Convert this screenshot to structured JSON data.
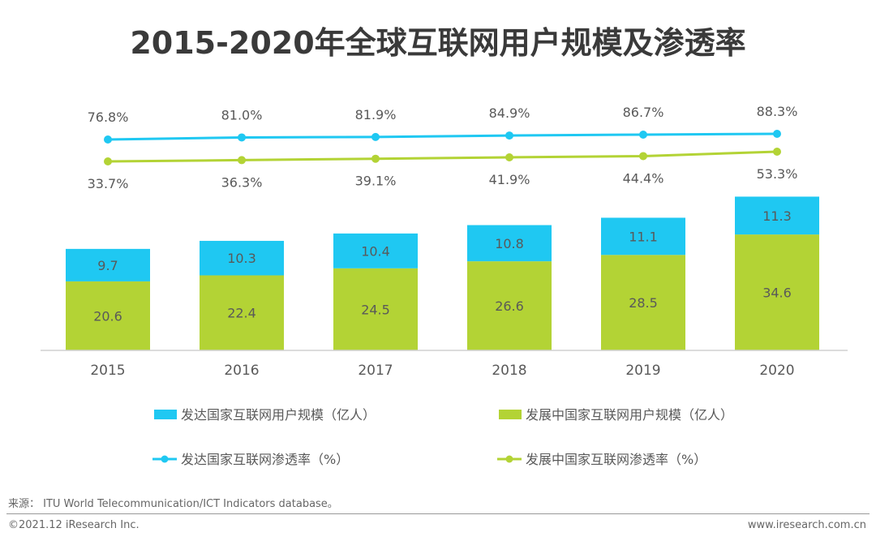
{
  "title": "2015-2020年全球互联网用户规模及渗透率",
  "chart_data": {
    "type": "bar",
    "subtype": "stacked bar with line overlay",
    "title": "2015-2020年全球互联网用户规模及渗透率",
    "categories": [
      "2015",
      "2016",
      "2017",
      "2018",
      "2019",
      "2020"
    ],
    "series": [
      {
        "name": "发展中国家互联网用户规模（亿人）",
        "type": "bar",
        "stack": "users",
        "color": "#b3d335",
        "values": [
          20.6,
          22.4,
          24.5,
          26.6,
          28.5,
          34.6
        ]
      },
      {
        "name": "发达国家互联网用户规模（亿人）",
        "type": "bar",
        "stack": "users",
        "color": "#1fc8f2",
        "values": [
          9.7,
          10.3,
          10.4,
          10.8,
          11.1,
          11.3
        ]
      },
      {
        "name": "发达国家互联网渗透率（%）",
        "type": "line",
        "color": "#1fc8f2",
        "values": [
          76.8,
          81.0,
          81.9,
          84.9,
          86.7,
          88.3
        ],
        "labels": [
          "76.8%",
          "81.0%",
          "81.9%",
          "84.9%",
          "86.7%",
          "88.3%"
        ]
      },
      {
        "name": "发展中国家互联网渗透率（%）",
        "type": "line",
        "color": "#b3d335",
        "values": [
          33.7,
          36.3,
          39.1,
          41.9,
          44.4,
          53.3
        ],
        "labels": [
          "33.7%",
          "36.3%",
          "39.1%",
          "41.9%",
          "44.4%",
          "53.3%"
        ]
      }
    ],
    "legend": {
      "placement": "bottom",
      "items": [
        {
          "label": "发达国家互联网用户规模（亿人）",
          "kind": "bar",
          "color": "#1fc8f2"
        },
        {
          "label": "发展中国家互联网用户规模（亿人）",
          "kind": "bar",
          "color": "#b3d335"
        },
        {
          "label": "发达国家互联网渗透率（%）",
          "kind": "line",
          "color": "#1fc8f2"
        },
        {
          "label": "发展中国家互联网渗透率（%）",
          "kind": "line",
          "color": "#b3d335"
        }
      ]
    },
    "xlabel": "",
    "ylabel": "",
    "grid": false,
    "y_axis_visible": false
  },
  "footer": {
    "source": "来源： ITU World Telecommunication/ICT Indicators database。",
    "copyright": "©2021.12 iResearch Inc.",
    "website": "www.iresearch.com.cn"
  }
}
